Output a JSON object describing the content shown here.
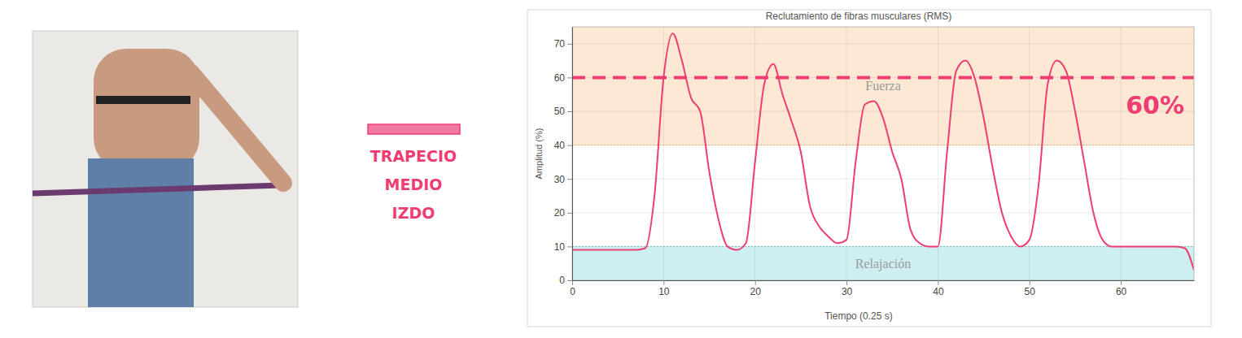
{
  "muscle_label": [
    "TRAPECIO",
    "MEDIO",
    "IZDO"
  ],
  "chart_data": {
    "type": "line",
    "title": "Reclutamiento de fibras musculares (RMS)",
    "x_label": "Tiempo (0.25 s)",
    "y_label": "Amplitud (%)",
    "x": [
      0,
      1,
      2,
      3,
      4,
      5,
      6,
      7,
      8,
      9,
      10,
      11,
      12,
      13,
      14,
      15,
      16,
      17,
      18,
      19,
      20,
      21,
      22,
      23,
      24,
      25,
      26,
      27,
      28,
      29,
      30,
      31,
      32,
      33,
      34,
      35,
      36,
      37,
      38,
      39,
      40,
      41,
      42,
      43,
      44,
      45,
      46,
      47,
      48,
      49,
      50,
      51,
      52,
      53,
      54,
      55,
      56,
      57,
      58,
      59,
      60,
      61,
      62,
      63,
      64,
      65,
      66,
      67,
      68
    ],
    "series": [
      {
        "color": "#ee3d73",
        "values": [
          9,
          9,
          9,
          9,
          9,
          9,
          9,
          9,
          9.5,
          25,
          60,
          73,
          65,
          54,
          50,
          32,
          18,
          10,
          9,
          11,
          35,
          58,
          64,
          55,
          47,
          38,
          22,
          16,
          13,
          11,
          12,
          35,
          52,
          53,
          48,
          38,
          30,
          15,
          11,
          10,
          10,
          38,
          62,
          65,
          60,
          48,
          33,
          20,
          13,
          10,
          12,
          28,
          58,
          65,
          62,
          50,
          35,
          20,
          12,
          10,
          10,
          10,
          10,
          10,
          10,
          10,
          10,
          9.5,
          3
        ]
      }
    ],
    "xlim": [
      0,
      68
    ],
    "ylim": [
      0,
      75
    ],
    "xticks": [
      0,
      10,
      20,
      30,
      40,
      50,
      60
    ],
    "yticks": [
      0,
      10,
      20,
      30,
      40,
      50,
      60,
      70
    ],
    "grid": true,
    "bands": [
      {
        "label": "Fuerza",
        "from": 40,
        "to": 75,
        "color": "#fde8d4"
      },
      {
        "label": "Relajación",
        "from": 0,
        "to": 10,
        "color": "#cdeff1"
      }
    ],
    "reference_line": {
      "value": 60,
      "label": "60%",
      "color": "#ee3d73",
      "line_style": "dashed"
    }
  }
}
